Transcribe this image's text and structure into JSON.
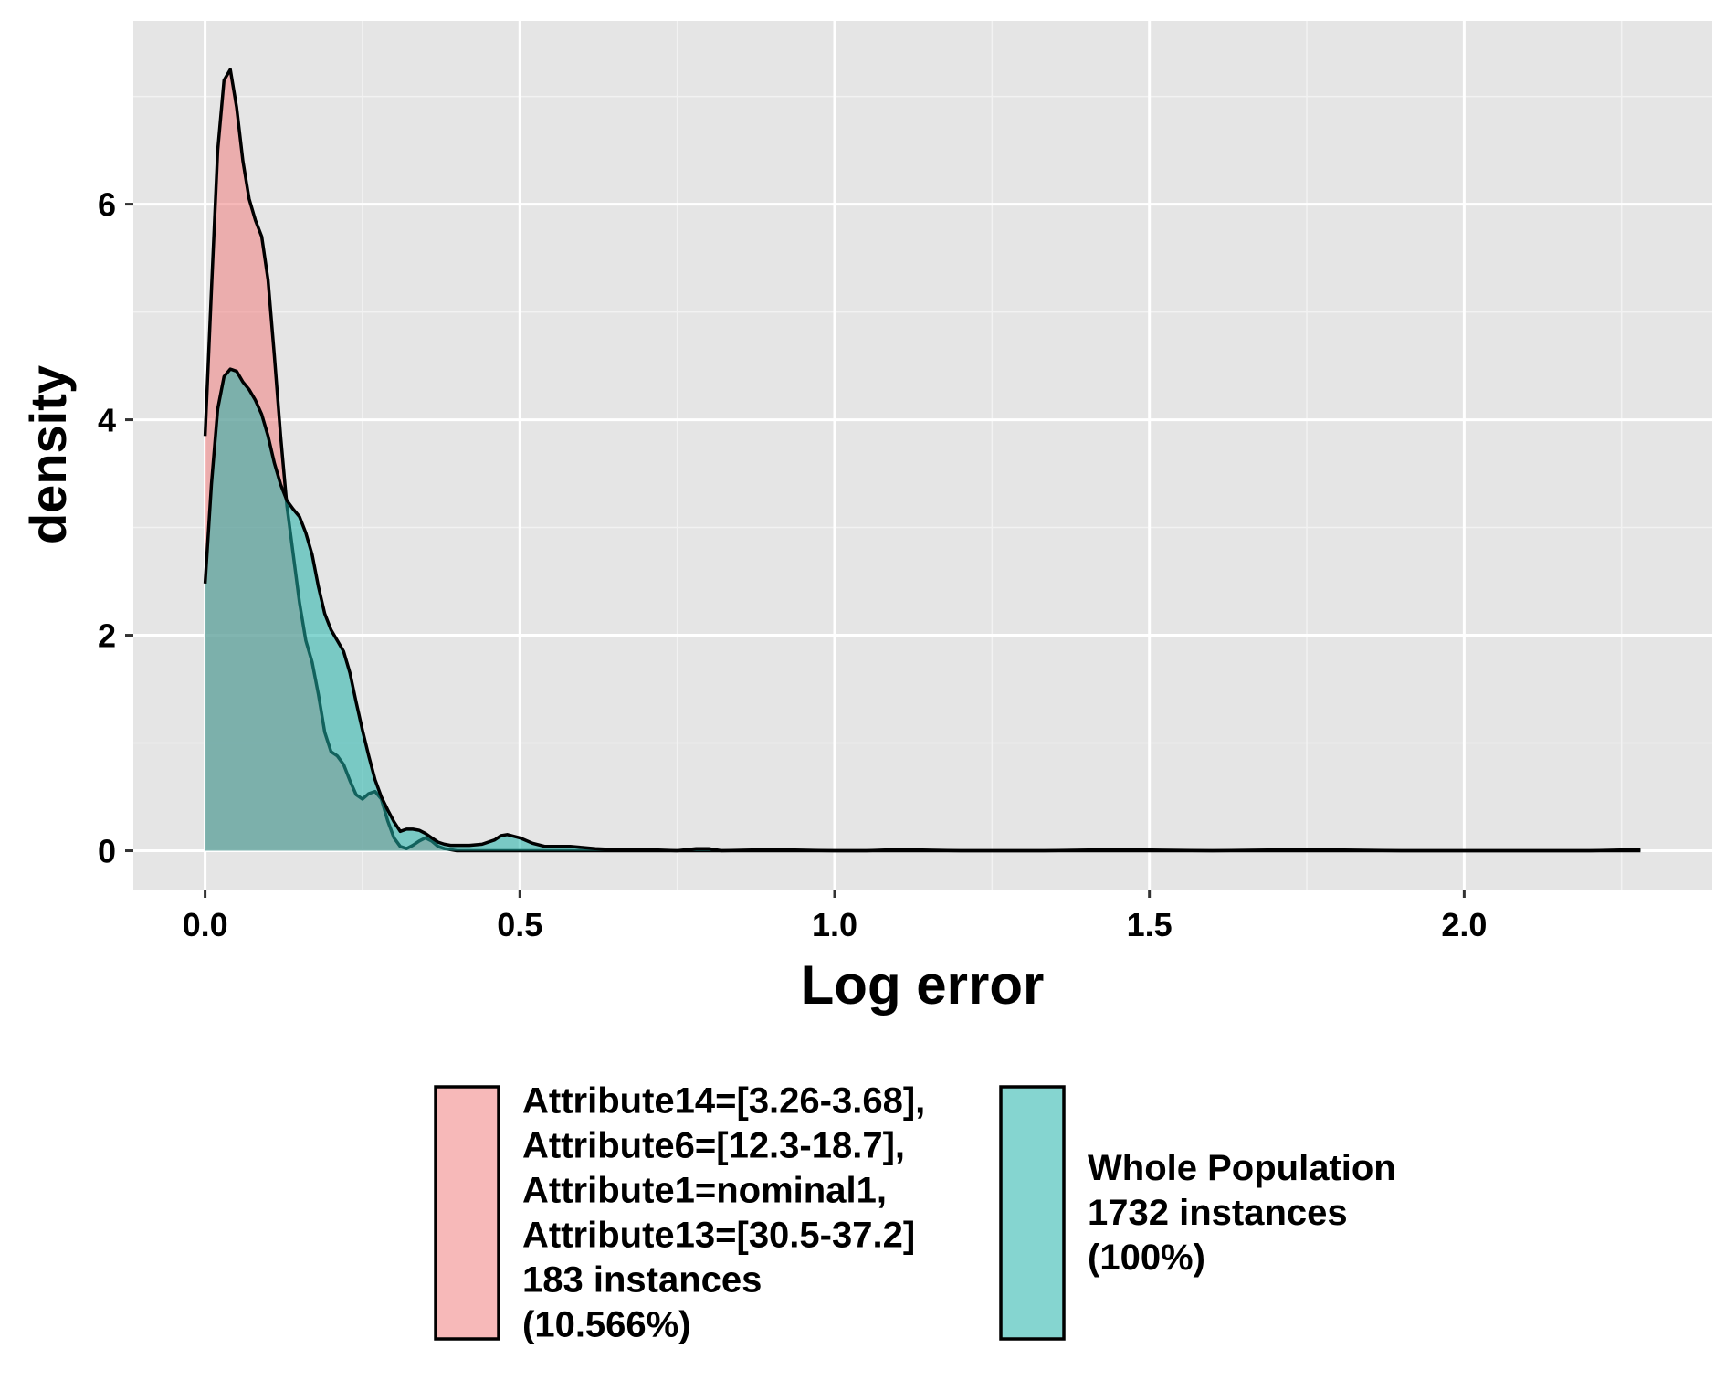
{
  "chart_data": {
    "type": "area",
    "title": "",
    "xlabel": "Log error",
    "ylabel": "density",
    "xlim": [
      -0.114,
      2.394
    ],
    "ylim": [
      -0.36,
      7.7
    ],
    "x_ticks": [
      {
        "value": 0.0,
        "label": "0.0"
      },
      {
        "value": 0.5,
        "label": "0.5"
      },
      {
        "value": 1.0,
        "label": "1.0"
      },
      {
        "value": 1.5,
        "label": "1.5"
      },
      {
        "value": 2.0,
        "label": "2.0"
      }
    ],
    "y_ticks": [
      {
        "value": 0,
        "label": "0"
      },
      {
        "value": 2,
        "label": "2"
      },
      {
        "value": 4,
        "label": "4"
      },
      {
        "value": 6,
        "label": "6"
      }
    ],
    "grid": true,
    "legend_position": "bottom",
    "series": [
      {
        "name": "Attribute14=[3.26-3.68],\nAttribute6=[12.3-18.7],\nAttribute1=nominal1,\nAttribute13=[30.5-37.2]\n183 instances\n(10.566%)",
        "color": "#F08080",
        "points": [
          [
            0.0,
            3.85
          ],
          [
            0.01,
            5.2
          ],
          [
            0.02,
            6.5
          ],
          [
            0.03,
            7.15
          ],
          [
            0.04,
            7.25
          ],
          [
            0.05,
            6.9
          ],
          [
            0.06,
            6.4
          ],
          [
            0.07,
            6.05
          ],
          [
            0.08,
            5.85
          ],
          [
            0.09,
            5.7
          ],
          [
            0.1,
            5.3
          ],
          [
            0.11,
            4.6
          ],
          [
            0.12,
            3.85
          ],
          [
            0.13,
            3.2
          ],
          [
            0.14,
            2.75
          ],
          [
            0.15,
            2.3
          ],
          [
            0.16,
            1.95
          ],
          [
            0.17,
            1.75
          ],
          [
            0.18,
            1.45
          ],
          [
            0.19,
            1.1
          ],
          [
            0.2,
            0.92
          ],
          [
            0.21,
            0.88
          ],
          [
            0.22,
            0.8
          ],
          [
            0.23,
            0.65
          ],
          [
            0.24,
            0.52
          ],
          [
            0.25,
            0.48
          ],
          [
            0.26,
            0.53
          ],
          [
            0.27,
            0.55
          ],
          [
            0.28,
            0.48
          ],
          [
            0.29,
            0.28
          ],
          [
            0.3,
            0.12
          ],
          [
            0.31,
            0.04
          ],
          [
            0.32,
            0.02
          ],
          [
            0.33,
            0.05
          ],
          [
            0.34,
            0.09
          ],
          [
            0.35,
            0.12
          ],
          [
            0.36,
            0.09
          ],
          [
            0.37,
            0.04
          ],
          [
            0.38,
            0.02
          ],
          [
            0.4,
            0.0
          ],
          [
            0.45,
            0.0
          ],
          [
            2.28,
            0.0
          ]
        ]
      },
      {
        "name": "Whole Population\n1732 instances\n(100%)",
        "color": "#20B2AA",
        "points": [
          [
            0.0,
            2.48
          ],
          [
            0.01,
            3.4
          ],
          [
            0.02,
            4.1
          ],
          [
            0.03,
            4.4
          ],
          [
            0.04,
            4.47
          ],
          [
            0.05,
            4.45
          ],
          [
            0.06,
            4.35
          ],
          [
            0.07,
            4.28
          ],
          [
            0.08,
            4.18
          ],
          [
            0.09,
            4.05
          ],
          [
            0.1,
            3.85
          ],
          [
            0.11,
            3.6
          ],
          [
            0.12,
            3.4
          ],
          [
            0.13,
            3.25
          ],
          [
            0.14,
            3.17
          ],
          [
            0.15,
            3.1
          ],
          [
            0.16,
            2.95
          ],
          [
            0.17,
            2.75
          ],
          [
            0.18,
            2.45
          ],
          [
            0.19,
            2.2
          ],
          [
            0.2,
            2.05
          ],
          [
            0.21,
            1.95
          ],
          [
            0.22,
            1.85
          ],
          [
            0.23,
            1.65
          ],
          [
            0.24,
            1.38
          ],
          [
            0.25,
            1.12
          ],
          [
            0.26,
            0.88
          ],
          [
            0.27,
            0.66
          ],
          [
            0.28,
            0.5
          ],
          [
            0.29,
            0.38
          ],
          [
            0.3,
            0.27
          ],
          [
            0.31,
            0.18
          ],
          [
            0.32,
            0.2
          ],
          [
            0.33,
            0.2
          ],
          [
            0.34,
            0.19
          ],
          [
            0.35,
            0.16
          ],
          [
            0.36,
            0.12
          ],
          [
            0.37,
            0.08
          ],
          [
            0.38,
            0.06
          ],
          [
            0.39,
            0.05
          ],
          [
            0.4,
            0.05
          ],
          [
            0.42,
            0.05
          ],
          [
            0.44,
            0.06
          ],
          [
            0.46,
            0.1
          ],
          [
            0.47,
            0.14
          ],
          [
            0.48,
            0.15
          ],
          [
            0.5,
            0.12
          ],
          [
            0.52,
            0.07
          ],
          [
            0.54,
            0.04
          ],
          [
            0.56,
            0.04
          ],
          [
            0.58,
            0.04
          ],
          [
            0.6,
            0.03
          ],
          [
            0.62,
            0.02
          ],
          [
            0.65,
            0.01
          ],
          [
            0.7,
            0.01
          ],
          [
            0.75,
            0.0
          ],
          [
            0.78,
            0.02
          ],
          [
            0.8,
            0.02
          ],
          [
            0.82,
            0.0
          ],
          [
            0.9,
            0.01
          ],
          [
            1.0,
            0.0
          ],
          [
            1.05,
            0.0
          ],
          [
            1.1,
            0.01
          ],
          [
            1.2,
            0.0
          ],
          [
            1.33,
            0.0
          ],
          [
            1.45,
            0.01
          ],
          [
            1.6,
            0.0
          ],
          [
            1.75,
            0.01
          ],
          [
            1.9,
            0.0
          ],
          [
            2.1,
            0.0
          ],
          [
            2.2,
            0.0
          ],
          [
            2.28,
            0.01
          ]
        ]
      }
    ]
  }
}
